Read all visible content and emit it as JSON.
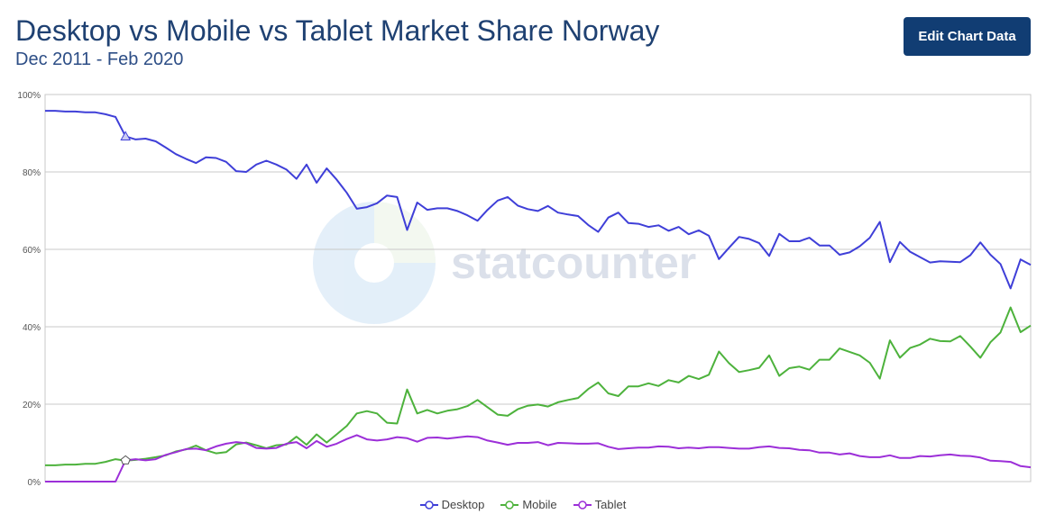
{
  "header": {
    "title": "Desktop vs Mobile vs Tablet Market Share Norway",
    "subtitle": "Dec 2011 - Feb 2020",
    "edit_button": "Edit Chart Data"
  },
  "watermark": "statcounter",
  "chart_data": {
    "type": "line",
    "ylim": [
      0,
      100
    ],
    "y_ticks": [
      "0%",
      "20%",
      "40%",
      "60%",
      "80%",
      "100%"
    ],
    "x_start": "2011-12",
    "x_end": "2020-02",
    "grid": true,
    "legend_position": "bottom-center",
    "series": [
      {
        "name": "Desktop",
        "color": "#3f3fd8",
        "values": [
          95.8,
          95.8,
          95.6,
          95.6,
          95.4,
          95.4,
          94.9,
          94.2,
          89.2,
          88.4,
          88.6,
          87.9,
          86.3,
          84.6,
          83.4,
          82.3,
          83.8,
          83.6,
          82.6,
          80.2,
          80.0,
          81.9,
          82.9,
          81.9,
          80.6,
          78.2,
          81.9,
          77.2,
          80.9,
          78.0,
          74.6,
          70.5,
          70.9,
          71.9,
          73.9,
          73.5,
          65.0,
          72.1,
          70.2,
          70.6,
          70.6,
          69.9,
          68.8,
          67.4,
          70.2,
          72.6,
          73.5,
          71.3,
          70.4,
          69.9,
          71.2,
          69.5,
          69.0,
          68.6,
          66.3,
          64.5,
          68.2,
          69.5,
          66.8,
          66.6,
          65.8,
          66.2,
          64.8,
          65.8,
          63.9,
          64.9,
          63.5,
          57.5,
          60.4,
          63.2,
          62.7,
          61.6,
          58.3,
          64.0,
          62.1,
          62.1,
          63.0,
          61.0,
          61.0,
          58.6,
          59.2,
          60.8,
          63.0,
          67.1,
          56.7,
          61.9,
          59.4,
          58.0,
          56.6,
          56.9,
          56.8,
          56.7,
          58.5,
          61.8,
          58.6,
          56.2,
          49.9,
          57.4,
          56.0
        ]
      },
      {
        "name": "Mobile",
        "color": "#4db23c",
        "values": [
          4.2,
          4.2,
          4.4,
          4.4,
          4.6,
          4.6,
          5.1,
          5.8,
          5.4,
          5.6,
          5.9,
          6.3,
          6.8,
          7.8,
          8.3,
          9.3,
          8.1,
          7.3,
          7.6,
          9.6,
          10.1,
          9.4,
          8.6,
          9.4,
          9.6,
          11.6,
          9.5,
          12.2,
          10.1,
          12.2,
          14.4,
          17.6,
          18.2,
          17.6,
          15.2,
          15.0,
          23.8,
          17.6,
          18.5,
          17.6,
          18.3,
          18.7,
          19.5,
          21.1,
          19.2,
          17.3,
          17.0,
          18.7,
          19.6,
          19.9,
          19.4,
          20.5,
          21.1,
          21.6,
          23.9,
          25.6,
          22.8,
          22.1,
          24.6,
          24.6,
          25.4,
          24.7,
          26.2,
          25.6,
          27.3,
          26.5,
          27.6,
          33.6,
          30.6,
          28.3,
          28.8,
          29.4,
          32.6,
          27.3,
          29.3,
          29.7,
          28.9,
          31.5,
          31.5,
          34.4,
          33.5,
          32.6,
          30.7,
          26.6,
          36.5,
          32.0,
          34.5,
          35.4,
          36.9,
          36.3,
          36.2,
          37.6,
          34.9,
          32.0,
          36.0,
          38.5,
          45.0,
          38.6,
          40.3
        ]
      },
      {
        "name": "Tablet",
        "color": "#9c2fd8",
        "values": [
          0.0,
          0.0,
          0.0,
          0.0,
          0.0,
          0.0,
          0.0,
          0.0,
          5.5,
          5.8,
          5.5,
          5.8,
          6.9,
          7.6,
          8.4,
          8.5,
          8.1,
          9.1,
          9.8,
          10.2,
          9.9,
          8.7,
          8.5,
          8.7,
          9.8,
          10.2,
          8.6,
          10.5,
          9.0,
          9.8,
          11.0,
          12.0,
          10.9,
          10.6,
          10.9,
          11.5,
          11.2,
          10.3,
          11.3,
          11.4,
          11.1,
          11.4,
          11.7,
          11.5,
          10.6,
          10.1,
          9.5,
          10.0,
          10.0,
          10.2,
          9.4,
          10.0,
          9.9,
          9.8,
          9.8,
          9.9,
          9.0,
          8.4,
          8.6,
          8.8,
          8.8,
          9.1,
          9.0,
          8.6,
          8.8,
          8.6,
          8.9,
          8.9,
          8.7,
          8.5,
          8.5,
          8.9,
          9.1,
          8.7,
          8.6,
          8.2,
          8.1,
          7.5,
          7.5,
          7.0,
          7.3,
          6.6,
          6.3,
          6.3,
          6.8,
          6.1,
          6.1,
          6.6,
          6.5,
          6.8,
          7.0,
          6.7,
          6.6,
          6.2,
          5.4,
          5.3,
          5.1,
          4.0,
          3.7
        ]
      }
    ]
  }
}
